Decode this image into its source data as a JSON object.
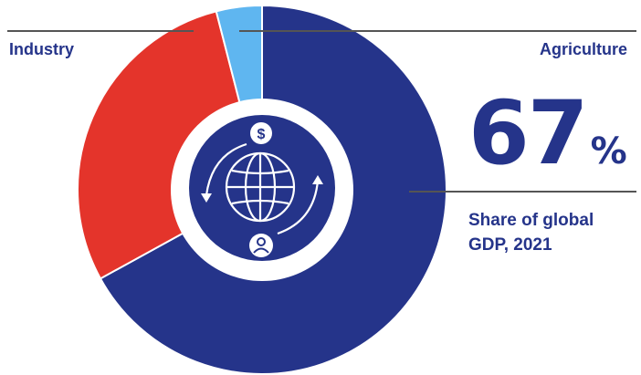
{
  "chart_data": {
    "type": "pie",
    "style": "donut",
    "slices": [
      {
        "name": "",
        "value": 67,
        "color": "#25348a"
      },
      {
        "name": "Industry",
        "value": 29,
        "color": "#e4342b"
      },
      {
        "name": "Agriculture",
        "value": 4,
        "color": "#5fb6f0"
      }
    ],
    "callout": {
      "value": "67",
      "unit": "%",
      "caption_line1": "Share of global",
      "caption_line2": "GDP, 2021"
    },
    "center_icon": "globe-with-dollar-and-person-cycle-icon"
  }
}
